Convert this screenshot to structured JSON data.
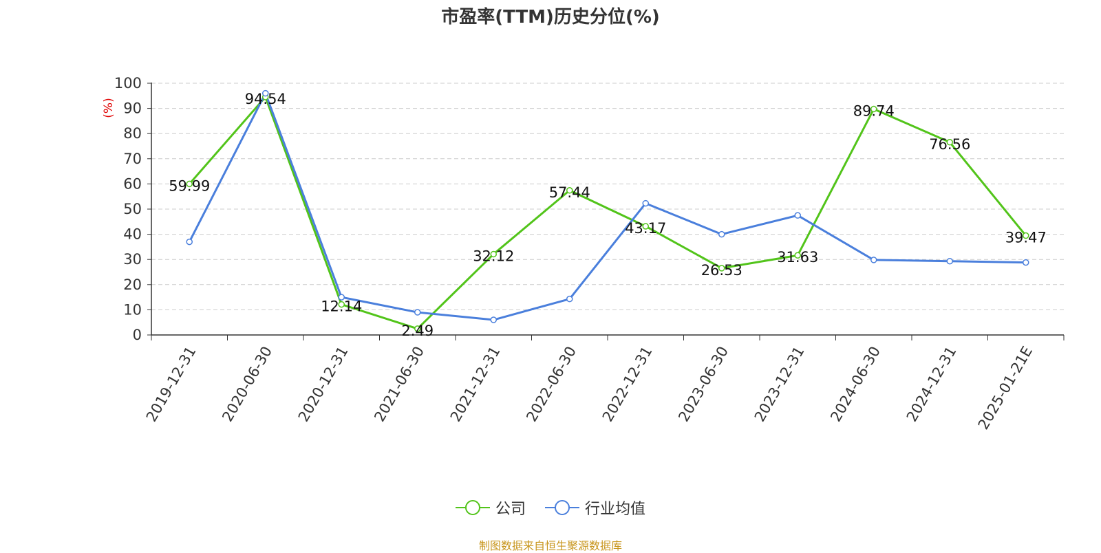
{
  "title": "市盈率(TTM)历史分位(%)",
  "source": "制图数据来自恒生聚源数据库",
  "colors": {
    "company": "#52c41a",
    "industry": "#4a7fdc",
    "ylabel": "#e00000",
    "source": "#c8961e",
    "grid": "#cccccc",
    "axis": "#333333"
  },
  "chart_data": {
    "type": "line",
    "title": "市盈率(TTM)历史分位(%)",
    "ylabel": "(%)",
    "xlabel": "",
    "ylim": [
      0,
      100
    ],
    "yticks": [
      0,
      10,
      20,
      30,
      40,
      50,
      60,
      70,
      80,
      90,
      100
    ],
    "grid": true,
    "legend_position": "bottom",
    "categories": [
      "2019-12-31",
      "2020-06-30",
      "2020-12-31",
      "2021-06-30",
      "2021-12-31",
      "2022-06-30",
      "2022-12-31",
      "2023-06-30",
      "2023-12-31",
      "2024-06-30",
      "2024-12-31",
      "2025-01-21E"
    ],
    "series": [
      {
        "name": "公司",
        "values": [
          59.99,
          94.54,
          12.14,
          2.49,
          32.12,
          57.44,
          43.17,
          26.53,
          31.63,
          89.74,
          76.56,
          39.47
        ],
        "data_labels": [
          "59.99",
          "94.54",
          "12.14",
          "2.49",
          "32.12",
          "57.44",
          "43.17",
          "26.53",
          "31.63",
          "89.74",
          "76.56",
          "39.47"
        ]
      },
      {
        "name": "行业均值",
        "values": [
          37,
          96,
          15,
          9,
          6,
          14.3,
          52.3,
          40,
          47.5,
          29.8,
          29.3,
          28.8
        ]
      }
    ]
  }
}
